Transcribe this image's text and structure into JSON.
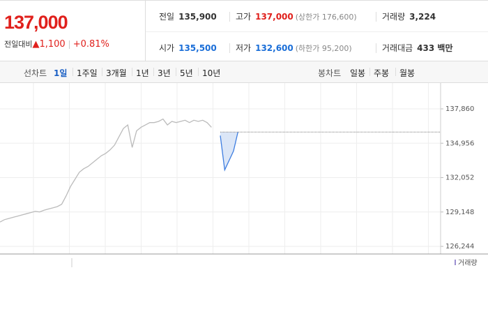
{
  "header": {
    "price": "137,000",
    "change_label": "전일대비",
    "change": "1,100",
    "change_pct": "+0.81%"
  },
  "info": [
    {
      "label": "전일",
      "value": "135,900",
      "color": "#333333"
    },
    {
      "label": "고가",
      "value": "137,000",
      "note": "(상한가 176,600)",
      "color": "#e0201c"
    },
    {
      "label": "거래량",
      "value": "3,224",
      "color": "#333333"
    },
    {
      "label": "시가",
      "value": "135,500",
      "color": "#1a6ed8"
    },
    {
      "label": "저가",
      "value": "132,600",
      "note": "(하한가 95,200)",
      "color": "#1a6ed8"
    },
    {
      "label": "거래대금",
      "value": "433 백만",
      "color": "#333333"
    }
  ],
  "tabs": {
    "line_label": "선차트",
    "line_items": [
      "1일",
      "1주일",
      "3개월",
      "1년",
      "3년",
      "5년",
      "10년"
    ],
    "line_active": 0,
    "candle_label": "봉차트",
    "candle_items": [
      "일봉",
      "주봉",
      "월봉"
    ]
  },
  "chart_data": {
    "type": "line",
    "volume_label": "거래량",
    "ylim": [
      125600,
      140040
    ],
    "yticks": [
      {
        "value": 137860,
        "label": "137,860"
      },
      {
        "value": 134956,
        "label": "134,956"
      },
      {
        "value": 132052,
        "label": "132,052"
      },
      {
        "value": 129148,
        "label": "129,148"
      },
      {
        "value": 126244,
        "label": "126,244"
      }
    ],
    "grid": true,
    "baseline": 135900,
    "series": [
      {
        "color": "#bbbbbb",
        "values": [
          128300,
          128500,
          128600,
          128700,
          128800,
          128900,
          129000,
          129100,
          129200,
          129150,
          129300,
          129400,
          129500,
          129600,
          129800,
          130500,
          131300,
          131900,
          132500,
          132800,
          133000,
          133300,
          133600,
          133900,
          134100,
          134400,
          134800,
          135500,
          136200,
          136500,
          134600,
          136000,
          136300,
          136500,
          136700,
          136700,
          136800,
          137000,
          136500,
          136800,
          136700,
          136800,
          136900,
          136700,
          136900,
          136800,
          136900,
          136700,
          136300,
          null,
          null,
          null,
          null,
          null,
          null,
          null,
          null,
          null,
          null,
          null,
          null,
          null,
          null,
          null,
          null,
          null,
          null,
          null,
          null,
          null,
          null,
          null,
          null,
          null,
          null,
          null,
          null,
          null,
          null,
          null,
          null,
          null,
          null,
          null,
          null,
          null,
          null,
          null,
          null,
          null,
          null,
          null,
          null,
          null,
          null,
          null,
          null,
          null,
          null,
          null
        ]
      },
      {
        "color": "#3d7de0",
        "fill": "#dbe6f7",
        "values": [
          null,
          null,
          null,
          null,
          null,
          null,
          null,
          null,
          null,
          null,
          null,
          null,
          null,
          null,
          null,
          null,
          null,
          null,
          null,
          null,
          null,
          null,
          null,
          null,
          null,
          null,
          null,
          null,
          null,
          null,
          null,
          null,
          null,
          null,
          null,
          null,
          null,
          null,
          null,
          null,
          null,
          null,
          null,
          null,
          null,
          null,
          null,
          null,
          null,
          null,
          135600,
          132700,
          133500,
          134300,
          135900,
          null,
          null,
          null,
          null,
          null,
          null,
          null,
          null,
          null,
          null,
          null,
          null,
          null,
          null,
          null,
          null,
          null,
          null,
          null,
          null,
          null,
          null,
          null,
          null,
          null,
          null,
          null,
          null,
          null,
          null,
          null,
          null,
          null,
          null,
          null,
          null,
          null,
          null,
          null,
          null,
          null,
          null,
          null,
          null,
          null
        ]
      }
    ]
  }
}
